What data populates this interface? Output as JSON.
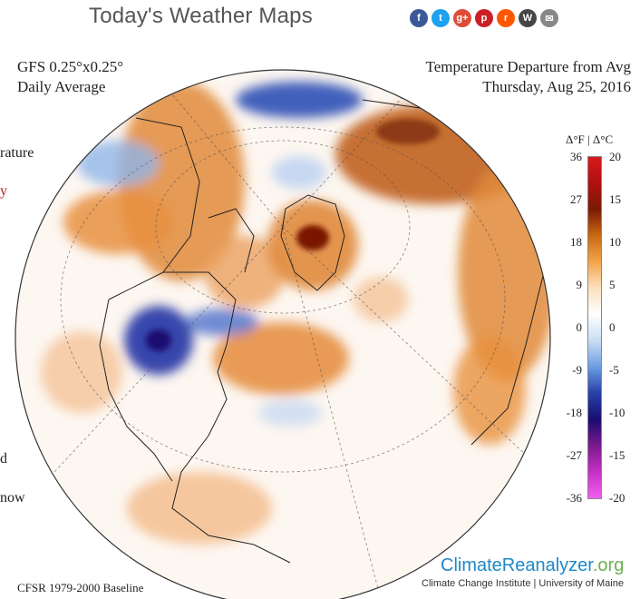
{
  "header": {
    "title": "Today's Weather Maps"
  },
  "social": [
    {
      "name": "facebook-icon",
      "glyph": "f",
      "color": "#3b5998"
    },
    {
      "name": "twitter-icon",
      "glyph": "t",
      "color": "#1da1f2"
    },
    {
      "name": "google-plus-icon",
      "glyph": "g+",
      "color": "#dd4b39"
    },
    {
      "name": "pinterest-icon",
      "glyph": "p",
      "color": "#cb2027"
    },
    {
      "name": "reddit-icon",
      "glyph": "r",
      "color": "#ff5700"
    },
    {
      "name": "wordpress-icon",
      "glyph": "W",
      "color": "#464646"
    },
    {
      "name": "email-icon",
      "glyph": "✉",
      "color": "#888888"
    }
  ],
  "model": {
    "line1": "GFS 0.25°x0.25°",
    "line2": "Daily Average"
  },
  "variable": {
    "line1": "Temperature Departure from Avg",
    "line2": "Thursday, Aug 25, 2016"
  },
  "edge_fragments": [
    {
      "text": "rature",
      "color": "#222"
    },
    {
      "text": "y",
      "color": "#b22222"
    },
    {
      "text": "d",
      "color": "#222"
    },
    {
      "text": "now",
      "color": "#222"
    }
  ],
  "legend": {
    "title": "Δ°F | Δ°C",
    "fahrenheit": [
      "36",
      "27",
      "18",
      "9",
      "0",
      "-9",
      "-18",
      "-27",
      "-36"
    ],
    "celsius": [
      "20",
      "15",
      "10",
      "5",
      "0",
      "-5",
      "-10",
      "-15",
      "-20"
    ],
    "colors": [
      "#d7191c",
      "#b01010",
      "#7a1a05",
      "#c96a12",
      "#f2a54c",
      "#fbe1bf",
      "#ffffff",
      "#c9ddf5",
      "#6a9de0",
      "#2840a8",
      "#1a0d70",
      "#7a1a8c",
      "#c530c5",
      "#f060f0"
    ]
  },
  "branding": {
    "name_a": "ClimateReanalyzer",
    "name_b": ".org",
    "institute": "Climate Change Institute | University of Maine"
  },
  "baseline": "CFSR 1979-2000 Baseline"
}
